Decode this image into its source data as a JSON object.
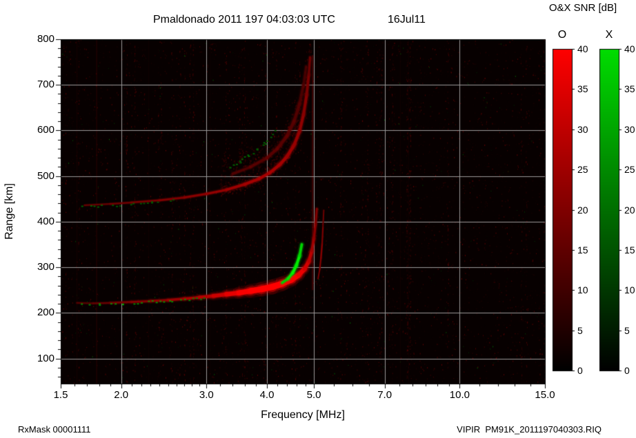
{
  "header": {
    "title": "Pmaldonado 2011 197 04:03:03 UTC",
    "date": "16Jul11",
    "colorbar_title": "O&X SNR [dB]"
  },
  "axes": {
    "x_label": "Frequency [MHz]",
    "y_label": "Range [km]"
  },
  "footer": {
    "rx_mask": "RxMask 00001111",
    "filename": "VIPIR  PM91K_2011197040303.RIQ"
  },
  "chart_data": {
    "type": "heatmap",
    "title": "Pmaldonado 2011 197 04:03:03 UTC 16Jul11",
    "subtitle": "O&X SNR [dB]",
    "xlabel": "Frequency [MHz]",
    "ylabel": "Range [km]",
    "x_scale": "log",
    "xlim": [
      1.5,
      15.0
    ],
    "ylim": [
      45,
      800
    ],
    "x_ticks": [
      1.5,
      2.0,
      3.0,
      4.0,
      5.0,
      7.0,
      10.0,
      15.0
    ],
    "x_tick_labels": [
      "1.5",
      "2.0",
      "3.0",
      "4.0",
      "5.0",
      "7.0",
      "10.0",
      "15.0"
    ],
    "y_ticks": [
      100,
      200,
      300,
      400,
      500,
      600,
      700,
      800
    ],
    "x_gridlines": [
      2,
      3,
      4,
      5,
      7,
      10
    ],
    "y_gridlines": [
      100,
      200,
      300,
      400,
      500,
      600,
      700
    ],
    "grid": true,
    "background": "#070000",
    "colorbars": [
      {
        "label": "O",
        "color": "#ff0000",
        "min": 0,
        "max": 40,
        "ticks": [
          0,
          5,
          10,
          15,
          20,
          25,
          30,
          35,
          40
        ]
      },
      {
        "label": "X",
        "color": "#00dd00",
        "min": 0,
        "max": 40,
        "ticks": [
          0,
          5,
          10,
          15,
          20,
          25,
          30,
          35,
          40
        ]
      }
    ],
    "series": [
      {
        "name": "F-trace-1hop-O",
        "mode": "O",
        "style": "line",
        "glow": true,
        "points": [
          [
            1.62,
            222,
            13,
            2
          ],
          [
            1.75,
            221,
            15,
            2
          ],
          [
            1.9,
            222,
            17,
            2.5
          ],
          [
            2.1,
            224,
            19,
            3
          ],
          [
            2.3,
            226,
            21,
            3
          ],
          [
            2.5,
            228,
            23,
            3.5
          ],
          [
            2.7,
            231,
            25,
            3.5
          ],
          [
            2.9,
            234,
            27,
            4
          ],
          [
            3.1,
            237,
            30,
            5
          ],
          [
            3.3,
            241,
            34,
            6
          ],
          [
            3.5,
            244,
            38,
            7
          ],
          [
            3.7,
            248,
            40,
            8
          ],
          [
            3.9,
            252,
            40,
            9
          ],
          [
            4.1,
            257,
            40,
            9
          ],
          [
            4.3,
            264,
            40,
            9
          ],
          [
            4.5,
            273,
            40,
            8
          ],
          [
            4.65,
            283,
            38,
            7
          ],
          [
            4.78,
            296,
            35,
            6
          ],
          [
            4.88,
            313,
            31,
            5
          ],
          [
            4.95,
            336,
            27,
            4
          ],
          [
            5.0,
            363,
            23,
            3.5
          ],
          [
            5.04,
            395,
            21,
            3
          ],
          [
            5.07,
            428,
            19,
            3
          ]
        ]
      },
      {
        "name": "F-trace-1hop-O-highray",
        "mode": "O",
        "style": "line",
        "glow": false,
        "points": [
          [
            5.1,
            275,
            18,
            2
          ],
          [
            5.14,
            295,
            20,
            2
          ],
          [
            5.17,
            320,
            21,
            2.5
          ],
          [
            5.2,
            352,
            20,
            2.5
          ],
          [
            5.22,
            388,
            18,
            2
          ],
          [
            5.24,
            425,
            16,
            2
          ]
        ]
      },
      {
        "name": "F-trace-1hop-X-lead",
        "mode": "X",
        "style": "dashes",
        "points": [
          [
            1.62,
            220,
            26
          ],
          [
            1.8,
            220,
            24
          ],
          [
            2.0,
            222,
            26
          ],
          [
            2.2,
            224,
            24
          ],
          [
            2.45,
            227,
            26
          ],
          [
            2.7,
            230,
            23
          ],
          [
            2.95,
            233,
            20
          ]
        ]
      },
      {
        "name": "F-trace-1hop-X-cusp",
        "mode": "X",
        "style": "line",
        "glow": true,
        "points": [
          [
            4.3,
            266,
            30,
            3
          ],
          [
            4.42,
            275,
            34,
            3.5
          ],
          [
            4.52,
            288,
            37,
            4
          ],
          [
            4.6,
            304,
            38,
            4
          ],
          [
            4.67,
            325,
            36,
            4
          ],
          [
            4.72,
            350,
            30,
            3.5
          ]
        ]
      },
      {
        "name": "F-trace-2hop-O",
        "mode": "O",
        "style": "line",
        "glow": true,
        "points": [
          [
            1.68,
            436,
            15,
            2
          ],
          [
            1.9,
            439,
            17,
            2
          ],
          [
            2.1,
            442,
            18,
            2.5
          ],
          [
            2.4,
            447,
            19,
            2.5
          ],
          [
            2.7,
            453,
            21,
            3
          ],
          [
            3.0,
            461,
            22,
            3
          ],
          [
            3.3,
            470,
            24,
            3.5
          ],
          [
            3.6,
            482,
            25,
            4
          ],
          [
            3.85,
            494,
            26,
            4
          ],
          [
            4.05,
            507,
            26,
            4
          ],
          [
            4.25,
            525,
            26,
            4.5
          ],
          [
            4.4,
            543,
            25,
            4.5
          ],
          [
            4.55,
            568,
            24,
            4.5
          ],
          [
            4.67,
            598,
            23,
            4
          ],
          [
            4.76,
            635,
            22,
            4
          ],
          [
            4.83,
            678,
            20,
            4
          ],
          [
            4.88,
            722,
            18,
            3.5
          ],
          [
            4.91,
            760,
            16,
            3
          ]
        ]
      },
      {
        "name": "F-trace-2hop-O-upper",
        "mode": "O",
        "style": "line",
        "glow": true,
        "alpha": 0.75,
        "points": [
          [
            3.4,
            505,
            14,
            3
          ],
          [
            3.7,
            520,
            15,
            3.5
          ],
          [
            4.0,
            540,
            16,
            4
          ],
          [
            4.2,
            560,
            16,
            4
          ],
          [
            4.4,
            588,
            16,
            4.5
          ],
          [
            4.55,
            620,
            15,
            4.5
          ],
          [
            4.67,
            658,
            14,
            4
          ],
          [
            4.76,
            700,
            13,
            3.5
          ],
          [
            4.82,
            740,
            12,
            3
          ]
        ]
      },
      {
        "name": "F-trace-2hop-X",
        "mode": "X",
        "style": "dashes",
        "points": [
          [
            1.66,
            433,
            18
          ],
          [
            1.95,
            437,
            16
          ],
          [
            2.3,
            443,
            15
          ],
          [
            2.6,
            449,
            14
          ]
        ]
      },
      {
        "name": "F-trace-2hop-X-mid",
        "mode": "X",
        "style": "dashes",
        "points": [
          [
            3.35,
            521,
            19
          ],
          [
            3.5,
            533,
            17
          ],
          [
            3.65,
            546,
            19
          ],
          [
            3.8,
            559,
            16
          ],
          [
            3.95,
            573,
            18
          ],
          [
            4.1,
            591,
            16
          ],
          [
            4.22,
            607,
            14
          ]
        ]
      }
    ],
    "diffuse": {
      "along": "F-trace-2hop-O",
      "f_range": [
        3.2,
        4.92
      ],
      "spread_km": 85,
      "count": 800
    },
    "rfi_stripes": [
      {
        "f": 1.62,
        "alpha": 0.08,
        "w": 1
      },
      {
        "f": 1.78,
        "alpha": 0.1,
        "w": 2
      },
      {
        "f": 2.28,
        "alpha": 0.05,
        "w": 1
      },
      {
        "f": 3.05,
        "alpha": 0.04,
        "w": 1
      },
      {
        "f": 4.93,
        "alpha": 0.1,
        "w": 1,
        "r0": 250,
        "r1": 620
      },
      {
        "f": 4.97,
        "alpha": 0.3,
        "w": 2,
        "r0": 250,
        "r1": 765
      },
      {
        "f": 5.2,
        "alpha": 0.08,
        "w": 1,
        "r0": 270,
        "r1": 430
      },
      {
        "f": 7.55,
        "alpha": 0.06,
        "w": 1
      },
      {
        "f": 7.85,
        "alpha": 0.05,
        "w": 1
      }
    ],
    "noise": {
      "speckle_count": 7000,
      "column_count": 45,
      "green_fraction": 0.06,
      "seed": 987654321
    }
  }
}
